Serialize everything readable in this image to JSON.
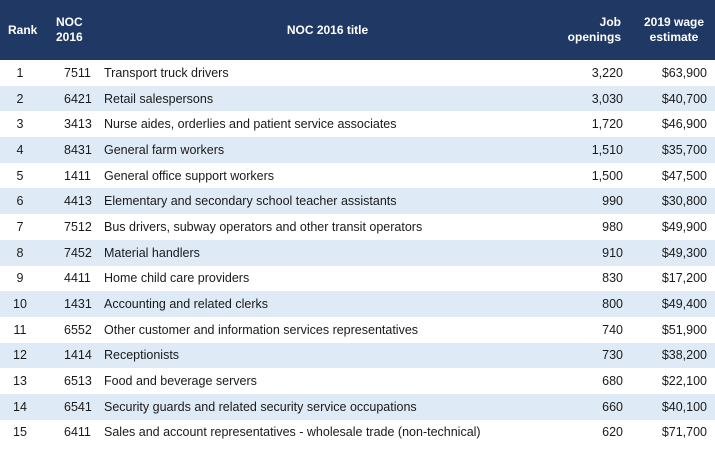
{
  "table": {
    "headers": {
      "rank": "Rank",
      "noc_line1": "NOC",
      "noc_line2": "2016",
      "title": "NOC 2016 title",
      "jobs_line1": "Job",
      "jobs_line2": "openings",
      "wage_line1": "2019 wage",
      "wage_line2": "estimate"
    },
    "rows": [
      {
        "rank": "1",
        "noc": "7511",
        "title": "Transport truck drivers",
        "jobs": "3,220",
        "wage": "$63,900"
      },
      {
        "rank": "2",
        "noc": "6421",
        "title": "Retail salespersons",
        "jobs": "3,030",
        "wage": "$40,700"
      },
      {
        "rank": "3",
        "noc": "3413",
        "title": "Nurse aides, orderlies and patient service associates",
        "jobs": "1,720",
        "wage": "$46,900"
      },
      {
        "rank": "4",
        "noc": "8431",
        "title": "General farm workers",
        "jobs": "1,510",
        "wage": "$35,700"
      },
      {
        "rank": "5",
        "noc": "1411",
        "title": "General office support workers",
        "jobs": "1,500",
        "wage": "$47,500"
      },
      {
        "rank": "6",
        "noc": "4413",
        "title": "Elementary and secondary school teacher assistants",
        "jobs": "990",
        "wage": "$30,800"
      },
      {
        "rank": "7",
        "noc": "7512",
        "title": "Bus drivers, subway operators and other transit operators",
        "jobs": "980",
        "wage": "$49,900"
      },
      {
        "rank": "8",
        "noc": "7452",
        "title": "Material handlers",
        "jobs": "910",
        "wage": "$49,300"
      },
      {
        "rank": "9",
        "noc": "4411",
        "title": "Home child care providers",
        "jobs": "830",
        "wage": "$17,200"
      },
      {
        "rank": "10",
        "noc": "1431",
        "title": "Accounting and related clerks",
        "jobs": "800",
        "wage": "$49,400"
      },
      {
        "rank": "11",
        "noc": "6552",
        "title": "Other customer and information services representatives",
        "jobs": "740",
        "wage": "$51,900"
      },
      {
        "rank": "12",
        "noc": "1414",
        "title": "Receptionists",
        "jobs": "730",
        "wage": "$38,200"
      },
      {
        "rank": "13",
        "noc": "6513",
        "title": "Food and beverage servers",
        "jobs": "680",
        "wage": "$22,100"
      },
      {
        "rank": "14",
        "noc": "6541",
        "title": "Security guards and related security service occupations",
        "jobs": "660",
        "wage": "$40,100"
      },
      {
        "rank": "15",
        "noc": "6411",
        "title": "Sales and account representatives - wholesale trade (non-technical)",
        "jobs": "620",
        "wage": "$71,700"
      }
    ]
  },
  "colors": {
    "header_bg": "#1f3864",
    "stripe": "#deeaf6"
  }
}
